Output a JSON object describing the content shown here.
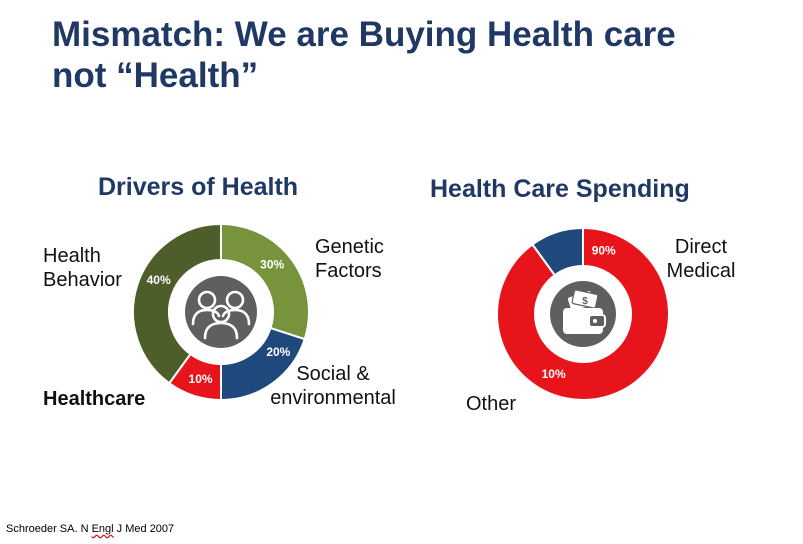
{
  "title": {
    "line1": "Mismatch:  We are Buying Health care",
    "line2": "not “Health”"
  },
  "citation": {
    "prefix": "Schroeder SA. N ",
    "squiggle": "Engl",
    "suffix": " J Med 2007"
  },
  "colors": {
    "title": "#1f3864",
    "dark_green": "#4e5e2a",
    "light_green": "#77933c",
    "navy": "#1f497d",
    "red": "#e8141b",
    "center_grey": "#5f5f5f"
  },
  "chart_data": [
    {
      "type": "pie",
      "title": "Drivers of Health",
      "center_icon": "people-group-icon",
      "slices": [
        {
          "label": "Genetic\nFactors",
          "value": 30,
          "value_label": "30%",
          "color": "#77933c"
        },
        {
          "label": "Social &\nenvironmental",
          "value": 20,
          "value_label": "20%",
          "color": "#1f497d"
        },
        {
          "label": "Healthcare",
          "value": 10,
          "value_label": "10%",
          "color": "#e8141b"
        },
        {
          "label": "Health\nBehavior",
          "value": 40,
          "value_label": "40%",
          "color": "#4e5e2a"
        }
      ]
    },
    {
      "type": "pie",
      "title": "Health Care Spending",
      "center_icon": "wallet-money-icon",
      "slices": [
        {
          "label": "Direct\nMedical",
          "value": 90,
          "value_label": "90%",
          "color": "#e8141b"
        },
        {
          "label": "Other",
          "value": 10,
          "value_label": "10%",
          "color": "#1f497d"
        }
      ]
    }
  ]
}
